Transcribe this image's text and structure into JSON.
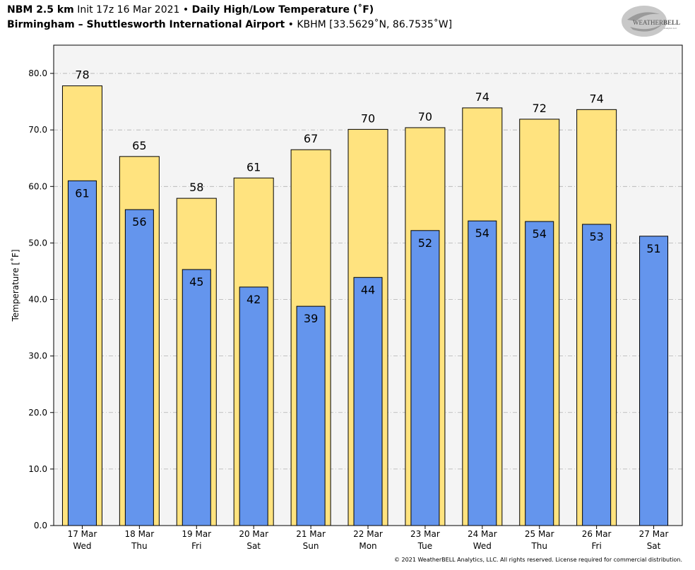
{
  "header": {
    "model": "NBM 2.5 km",
    "init": "Init 17z 16 Mar 2021",
    "bullet": "•",
    "product": "Daily High/Low Temperature (˚F)",
    "station_name": "Birmingham – Shuttlesworth International Airport",
    "station_info": "KBHM [33.5629˚N, 86.7535˚W]"
  },
  "logo": {
    "text_main": "WEATHER",
    "text_bold": "BELL",
    "text_sub": "Analytics LLC"
  },
  "footer": {
    "copyright": "© 2021 WeatherBELL Analytics, LLC. All rights reserved. License required for commercial distribution."
  },
  "colors": {
    "high": "#ffe37f",
    "low": "#6495ed",
    "plot_bg": "#f4f4f4",
    "grid": "#b0b0b0"
  },
  "chart_data": {
    "type": "bar",
    "title": "Daily High/Low Temperature (˚F)",
    "ylabel": "Temperature [˚F]",
    "ylim": [
      0,
      85
    ],
    "yticks": [
      0,
      10,
      20,
      30,
      40,
      50,
      60,
      70,
      80
    ],
    "ytick_labels": [
      "0.0",
      "10.0",
      "20.0",
      "30.0",
      "40.0",
      "50.0",
      "60.0",
      "70.0",
      "80.0"
    ],
    "grid": true,
    "categories": [
      {
        "date": "17 Mar",
        "day": "Wed"
      },
      {
        "date": "18 Mar",
        "day": "Thu"
      },
      {
        "date": "19 Mar",
        "day": "Fri"
      },
      {
        "date": "20 Mar",
        "day": "Sat"
      },
      {
        "date": "21 Mar",
        "day": "Sun"
      },
      {
        "date": "22 Mar",
        "day": "Mon"
      },
      {
        "date": "23 Mar",
        "day": "Tue"
      },
      {
        "date": "24 Mar",
        "day": "Wed"
      },
      {
        "date": "25 Mar",
        "day": "Thu"
      },
      {
        "date": "26 Mar",
        "day": "Fri"
      },
      {
        "date": "27 Mar",
        "day": "Sat"
      }
    ],
    "series": [
      {
        "name": "High",
        "values": [
          77.8,
          65.3,
          57.9,
          61.5,
          66.5,
          70.1,
          70.4,
          73.9,
          71.9,
          73.6,
          null
        ],
        "labels": [
          "78",
          "65",
          "58",
          "61",
          "67",
          "70",
          "70",
          "74",
          "72",
          "74",
          null
        ]
      },
      {
        "name": "Low",
        "values": [
          61.0,
          55.9,
          45.3,
          42.2,
          38.8,
          43.9,
          52.2,
          53.9,
          53.8,
          53.3,
          51.2
        ],
        "labels": [
          "61",
          "56",
          "45",
          "42",
          "39",
          "44",
          "52",
          "54",
          "54",
          "53",
          "51"
        ]
      }
    ]
  }
}
